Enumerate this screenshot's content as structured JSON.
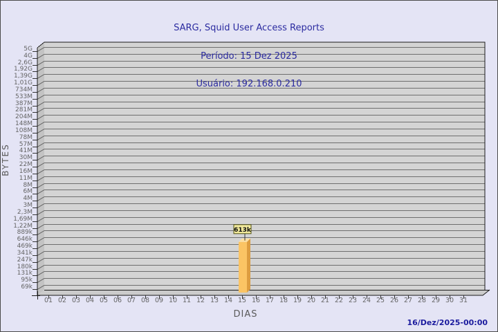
{
  "chart_data": {
    "type": "bar",
    "title": "SARG, Squid User Access Reports",
    "subtitle_lines": [
      "Período: 15 Dez 2025",
      "Usuário: 192.168.0.210"
    ],
    "xlabel": "DIAS",
    "ylabel": "BYTES",
    "y_scale": "log",
    "legend": "none",
    "x_tick_labels": [
      "01",
      "02",
      "03",
      "04",
      "05",
      "06",
      "07",
      "08",
      "09",
      "10",
      "11",
      "12",
      "13",
      "14",
      "15",
      "16",
      "17",
      "18",
      "19",
      "20",
      "21",
      "22",
      "23",
      "24",
      "25",
      "26",
      "27",
      "28",
      "29",
      "30",
      "31"
    ],
    "y_tick_labels": [
      "5G",
      "4G",
      "2,6G",
      "1,92G",
      "1,39G",
      "1,01G",
      "734M",
      "533M",
      "387M",
      "281M",
      "204M",
      "148M",
      "108M",
      "78M",
      "57M",
      "41M",
      "30M",
      "22M",
      "16M",
      "11M",
      "8M",
      "6M",
      "4M",
      "3M",
      "2,3M",
      "1,69M",
      "1,22M",
      "889k",
      "646k",
      "469k",
      "341k",
      "247k",
      "180k",
      "131k",
      "95k",
      "69k"
    ],
    "y_tick_values_bytes": [
      5000000000,
      4000000000,
      2600000000,
      1920000000,
      1390000000,
      1010000000,
      734000000,
      533000000,
      387000000,
      281000000,
      204000000,
      148000000,
      108000000,
      78000000,
      57000000,
      41000000,
      30000000,
      22000000,
      16000000,
      11000000,
      8000000,
      6000000,
      4000000,
      3000000,
      2300000,
      1690000,
      1220000,
      889000,
      646000,
      469000,
      341000,
      247000,
      180000,
      131000,
      95000,
      69000
    ],
    "bars": [
      {
        "day": "15",
        "value_bytes": 613000,
        "value_label": "613k"
      }
    ],
    "colors": {
      "page_bg": "#e4e4f5",
      "page_border": "#4a4a4a",
      "plot_bg": "#d4d4d4",
      "wall": "#c3c3c3",
      "floor": "#cbcbcb",
      "grid_line": "#6e6e6e",
      "wall_line": "#5c5c5c",
      "frame": "#1a1a1a",
      "tick": "#333333",
      "axis_text": "#646464",
      "axis_title_text": "#5a5a5a",
      "title_text": "#2b2ba0",
      "timestamp_text": "#1b1b9e",
      "bar_front": "#fbc464",
      "bar_top": "#fde0a2",
      "bar_side": "#dd9d40",
      "value_box_bg": "#f2ea9c",
      "value_box_border": "#4f4f14",
      "value_text": "#111111"
    }
  },
  "footer": {
    "generated_at": "16/Dez/2025-00:00"
  }
}
